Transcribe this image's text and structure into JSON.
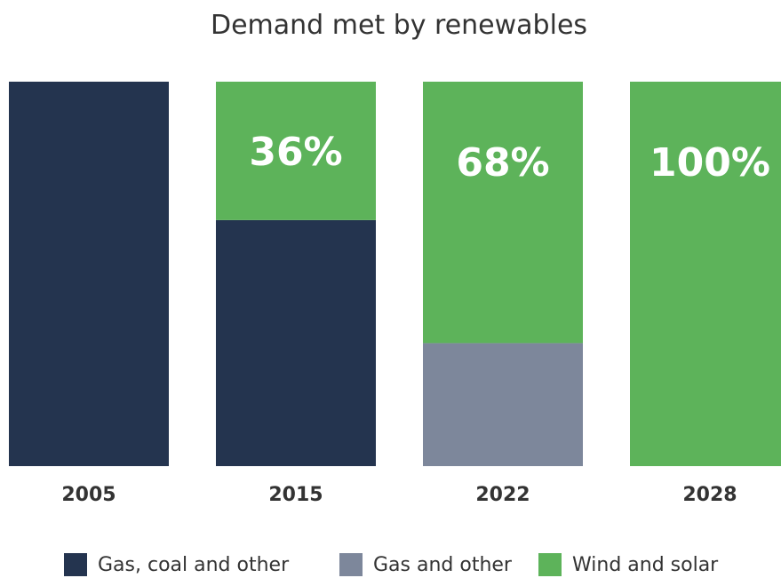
{
  "chart_data": {
    "type": "bar",
    "stacked": true,
    "title": "Demand met by renewables",
    "categories": [
      "2005",
      "2015",
      "2022",
      "2028"
    ],
    "series": [
      {
        "name": "Gas, coal and other",
        "color": "#24344f",
        "values": [
          100,
          64,
          0,
          0
        ]
      },
      {
        "name": "Gas and other",
        "color": "#7d879b",
        "values": [
          0,
          0,
          32,
          0
        ]
      },
      {
        "name": "Wind and solar",
        "color": "#5db35a",
        "values": [
          0,
          36,
          68,
          100
        ]
      }
    ],
    "data_labels": [
      "",
      "36%",
      "68%",
      "100%"
    ],
    "ylim": [
      0,
      100
    ],
    "grid": false,
    "legend": "bottom"
  }
}
